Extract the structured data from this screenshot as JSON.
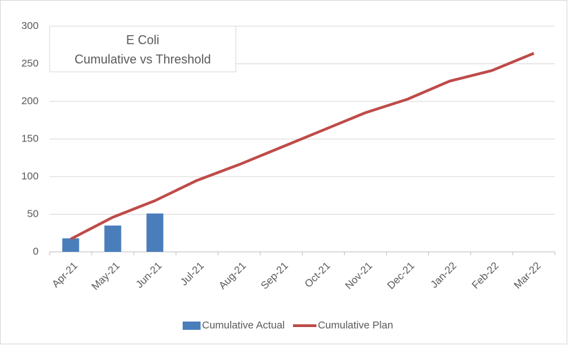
{
  "chart_data": {
    "type": "bar",
    "title": "E Coli",
    "subtitle": "Cumulative vs Threshold",
    "categories": [
      "Apr-21",
      "May-21",
      "Jun-21",
      "Jul-21",
      "Aug-21",
      "Sep-21",
      "Oct-21",
      "Nov-21",
      "Dec-21",
      "Jan-22",
      "Feb-22",
      "Mar-22"
    ],
    "series": [
      {
        "name": "Cumulative Actual",
        "type": "bar",
        "color": "#4a7ebb",
        "values": [
          18,
          35,
          51,
          null,
          null,
          null,
          null,
          null,
          null,
          null,
          null,
          null
        ]
      },
      {
        "name": "Cumulative Plan",
        "type": "line",
        "color": "#be4b48",
        "values": [
          17,
          46,
          68,
          95,
          116,
          139,
          162,
          185,
          203,
          227,
          241,
          264
        ]
      }
    ],
    "ylim": [
      0,
      300
    ],
    "yticks": [
      0,
      50,
      100,
      150,
      200,
      250,
      300
    ],
    "grid": true,
    "legend": "bottom"
  }
}
